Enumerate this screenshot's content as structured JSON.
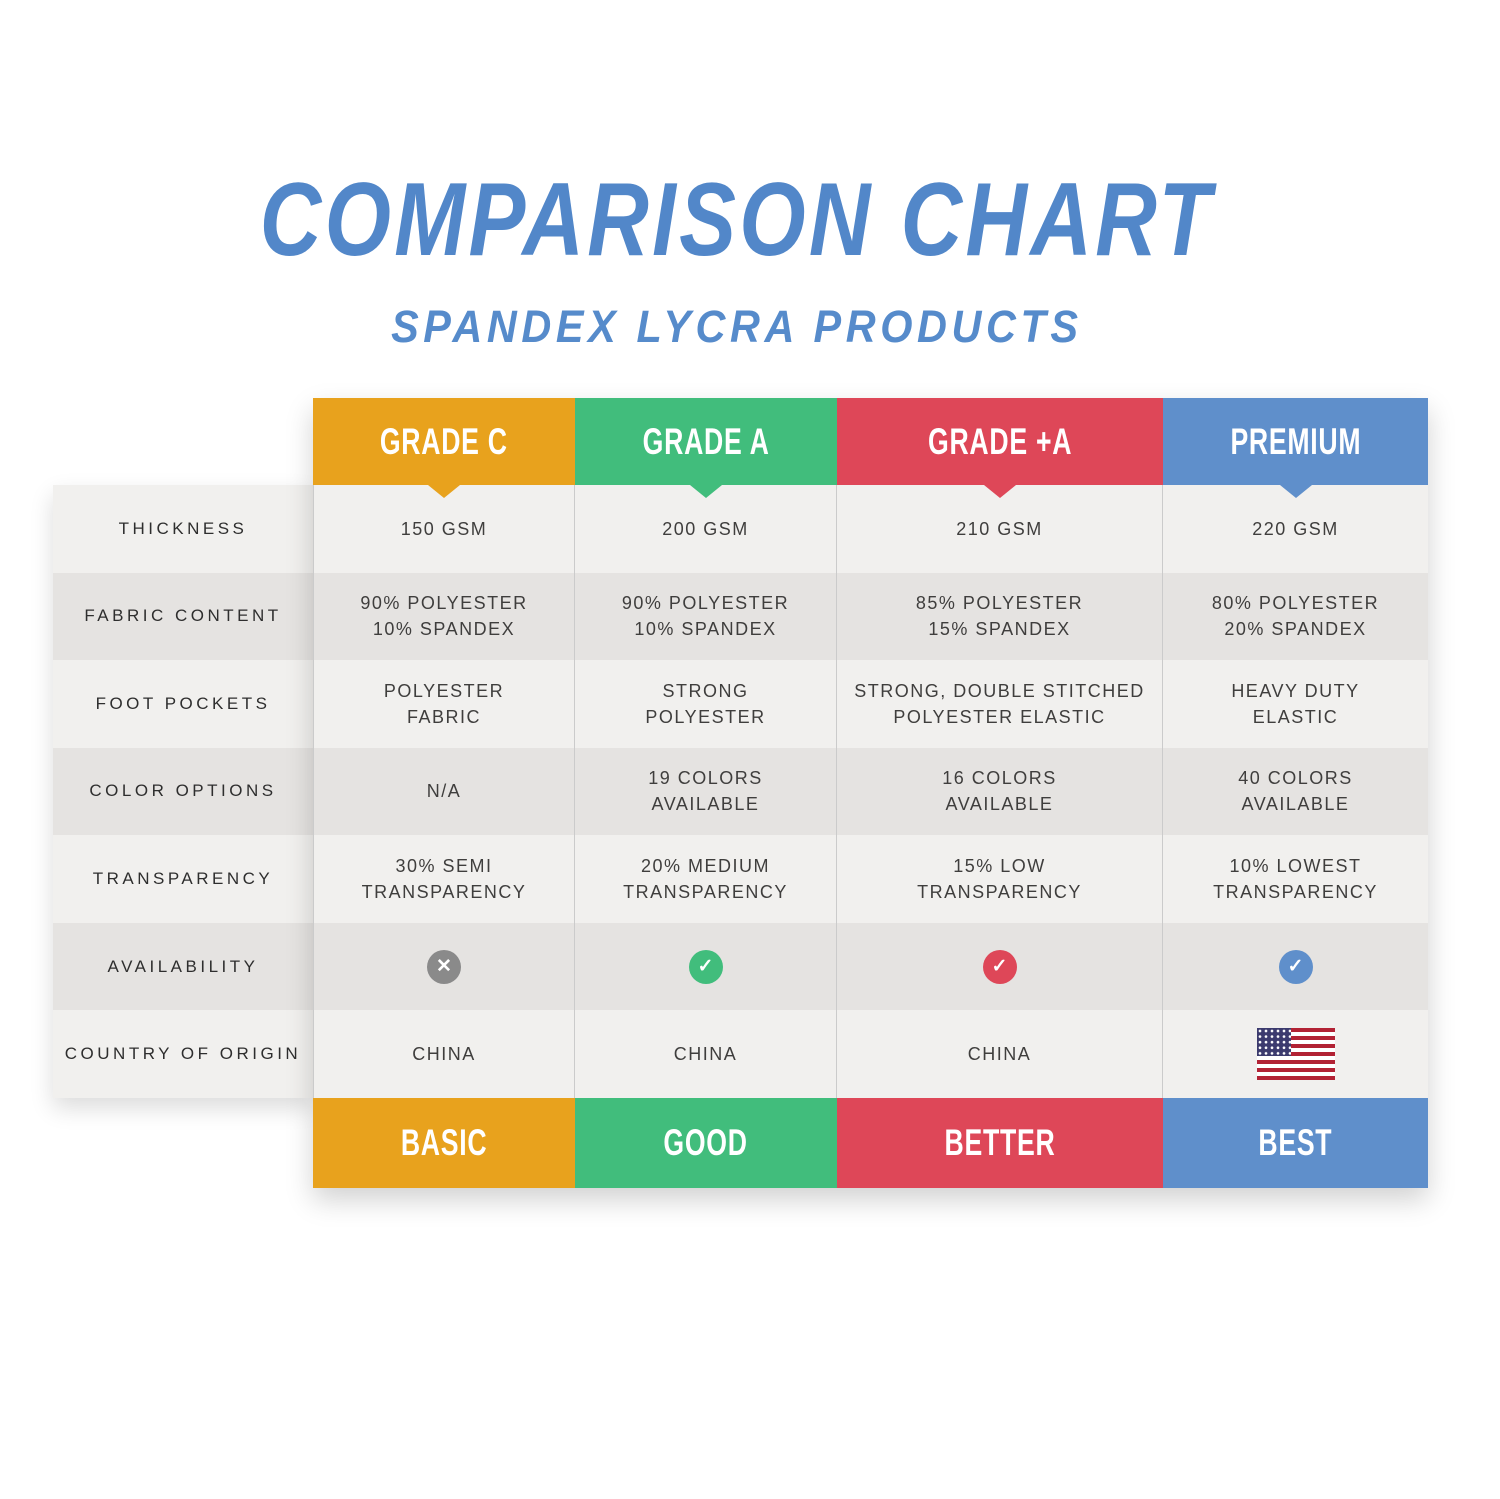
{
  "title": "COMPARISON CHART",
  "subtitle": "SPANDEX LYCRA PRODUCTS",
  "colors": {
    "title_blue": "#5287C9",
    "row_light": "#F1F0EE",
    "row_dark": "#E5E3E1",
    "grid_line": "#CBCBCB",
    "cell_text": "#3F3E3D",
    "grade_c_orange": "#E8A21D",
    "grade_a_green": "#41BD7C",
    "grade_plus_a_red": "#DE4758",
    "premium_blue": "#5F8FCB",
    "unavailable_gray": "#8A8A8A",
    "flag_red": "#B22234",
    "flag_blue": "#3C3B6E"
  },
  "chart_data": {
    "type": "table",
    "title": "COMPARISON CHART",
    "subtitle": "SPANDEX LYCRA PRODUCTS",
    "columns": [
      {
        "header": "GRADE C",
        "footer": "BASIC",
        "color": "#E8A21D"
      },
      {
        "header": "GRADE A",
        "footer": "GOOD",
        "color": "#41BD7C"
      },
      {
        "header": "GRADE +A",
        "footer": "BETTER",
        "color": "#DE4758"
      },
      {
        "header": "PREMIUM",
        "footer": "BEST",
        "color": "#5F8FCB"
      }
    ],
    "rows": [
      {
        "label": "THICKNESS",
        "cells": [
          [
            "150 GSM"
          ],
          [
            "200 GSM"
          ],
          [
            "210 GSM"
          ],
          [
            "220 GSM"
          ]
        ]
      },
      {
        "label": "FABRIC CONTENT",
        "cells": [
          [
            "90% POLYESTER",
            "10% SPANDEX"
          ],
          [
            "90% POLYESTER",
            "10% SPANDEX"
          ],
          [
            "85% POLYESTER",
            "15% SPANDEX"
          ],
          [
            "80% POLYESTER",
            "20% SPANDEX"
          ]
        ]
      },
      {
        "label": "FOOT POCKETS",
        "cells": [
          [
            "POLYESTER",
            "FABRIC"
          ],
          [
            "STRONG",
            "POLYESTER"
          ],
          [
            "STRONG, DOUBLE STITCHED",
            "POLYESTER ELASTIC"
          ],
          [
            "HEAVY DUTY",
            "ELASTIC"
          ]
        ]
      },
      {
        "label": "COLOR OPTIONS",
        "cells": [
          [
            "N/A"
          ],
          [
            "19 COLORS",
            "AVAILABLE"
          ],
          [
            "16 COLORS",
            "AVAILABLE"
          ],
          [
            "40 COLORS",
            "AVAILABLE"
          ]
        ]
      },
      {
        "label": "TRANSPARENCY",
        "cells": [
          [
            "30% SEMI",
            "TRANSPARENCY"
          ],
          [
            "20% MEDIUM",
            "TRANSPARENCY"
          ],
          [
            "15% LOW",
            "TRANSPARENCY"
          ],
          [
            "10% LOWEST",
            "TRANSPARENCY"
          ]
        ]
      },
      {
        "label": "AVAILABILITY",
        "cells": [
          {
            "icon": "cross-icon",
            "glyph": "✕",
            "color": "#8A8A8A"
          },
          {
            "icon": "check-icon",
            "glyph": "✓",
            "color": "#41BD7C"
          },
          {
            "icon": "check-icon",
            "glyph": "✓",
            "color": "#DE4758"
          },
          {
            "icon": "check-icon",
            "glyph": "✓",
            "color": "#5F8FCB"
          }
        ]
      },
      {
        "label": "COUNTRY OF ORIGIN",
        "cells": [
          [
            "CHINA"
          ],
          [
            "CHINA"
          ],
          [
            "CHINA"
          ],
          {
            "icon": "usa-flag-icon"
          }
        ]
      }
    ]
  }
}
